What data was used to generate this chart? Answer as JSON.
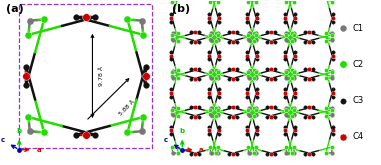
{
  "panel_a_label": "(a)",
  "panel_b_label": "(b)",
  "atom_colors": {
    "C1": "#777777",
    "C2": "#22dd00",
    "C3": "#111111",
    "C4": "#cc0000"
  },
  "legend_labels": [
    "C1",
    "C2",
    "C3",
    "C4"
  ],
  "legend_colors": [
    "#777777",
    "#22dd00",
    "#111111",
    "#cc0000"
  ],
  "dim_label1": "9.78 Å",
  "dim_label2": "5.88 Å",
  "dashed_box_color": "#9933cc",
  "background": "#ffffff",
  "segments": [
    [
      90,
      [
        "C3",
        "C4",
        "C3"
      ]
    ],
    [
      45,
      [
        "C2",
        "C1",
        "C2"
      ]
    ],
    [
      0,
      [
        "C3",
        "C4",
        "C3"
      ]
    ],
    [
      315,
      [
        "C2",
        "C1",
        "C2"
      ]
    ],
    [
      270,
      [
        "C3",
        "C4",
        "C3"
      ]
    ],
    [
      225,
      [
        "C2",
        "C1",
        "C2"
      ]
    ],
    [
      180,
      [
        "C3",
        "C4",
        "C3"
      ]
    ],
    [
      135,
      [
        "C2",
        "C1",
        "C2"
      ]
    ]
  ],
  "spread_deg": 9,
  "octagon_squareness": 0.75
}
